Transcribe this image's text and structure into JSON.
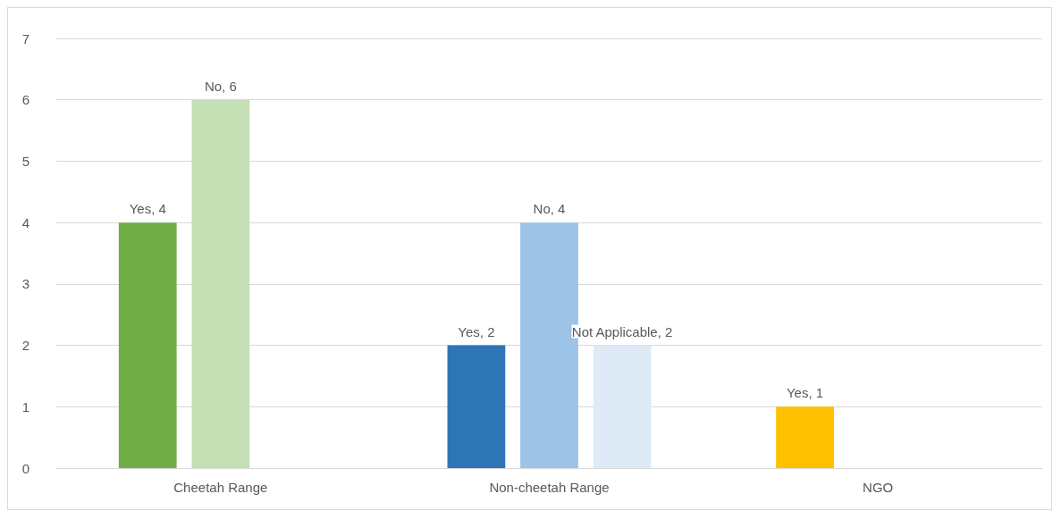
{
  "chart_data": {
    "type": "bar",
    "categories": [
      "Cheetah Range",
      "Non-cheetah Range",
      "NGO"
    ],
    "series": [
      {
        "values": [
          4,
          2,
          1
        ],
        "colors": [
          "#70ad47",
          "#2e75b6",
          "#ffc000"
        ],
        "value_labels": [
          "Yes, 4",
          "Yes, 2",
          "Yes, 1"
        ]
      },
      {
        "values": [
          6,
          4,
          null
        ],
        "colors": [
          "#c5e0b4",
          "#9dc3e6",
          null
        ],
        "value_labels": [
          "No, 6",
          "No, 4",
          null
        ]
      },
      {
        "values": [
          null,
          2,
          null
        ],
        "colors": [
          null,
          "#deebf7",
          null
        ],
        "value_labels": [
          null,
          "Not Applicable, 2",
          null
        ]
      }
    ],
    "ylim": [
      0,
      7
    ],
    "yticks": [
      0,
      1,
      2,
      3,
      4,
      5,
      6,
      7
    ],
    "grid": "y"
  }
}
